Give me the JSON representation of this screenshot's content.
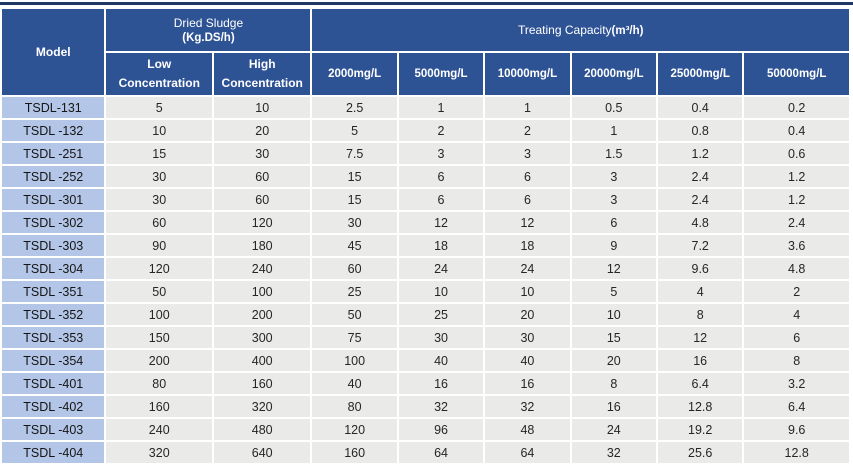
{
  "colors": {
    "top_border": "#1f3864",
    "header_bg": "#2e5395",
    "header_text": "#ffffff",
    "model_col_bg": "#b4c6e7",
    "data_cell_bg": "#eaeae8"
  },
  "table": {
    "header": {
      "model": "Model",
      "dried_sludge": {
        "title": "Dried Sludge",
        "unit": "(Kg.DS/h)"
      },
      "sub_columns": [
        {
          "line1": "Low",
          "line2": "Concentration"
        },
        {
          "line1": "High",
          "line2": "Concentration"
        }
      ],
      "treating_capacity": {
        "title": "Treating Capacity",
        "unit": "(m³/h)"
      },
      "concentration_columns": [
        "2000mg/L",
        "5000mg/L",
        "10000mg/L",
        "20000mg/L",
        "25000mg/L",
        "50000mg/L"
      ]
    },
    "rows": [
      {
        "model": "TSDL-131",
        "low": "5",
        "high": "10",
        "values": [
          "2.5",
          "1",
          "1",
          "0.5",
          "0.4",
          "0.2"
        ]
      },
      {
        "model": "TSDL -132",
        "low": "10",
        "high": "20",
        "values": [
          "5",
          "2",
          "2",
          "1",
          "0.8",
          "0.4"
        ]
      },
      {
        "model": "TSDL -251",
        "low": "15",
        "high": "30",
        "values": [
          "7.5",
          "3",
          "3",
          "1.5",
          "1.2",
          "0.6"
        ]
      },
      {
        "model": "TSDL -252",
        "low": "30",
        "high": "60",
        "values": [
          "15",
          "6",
          "6",
          "3",
          "2.4",
          "1.2"
        ]
      },
      {
        "model": "TSDL -301",
        "low": "30",
        "high": "60",
        "values": [
          "15",
          "6",
          "6",
          "3",
          "2.4",
          "1.2"
        ]
      },
      {
        "model": "TSDL -302",
        "low": "60",
        "high": "120",
        "values": [
          "30",
          "12",
          "12",
          "6",
          "4.8",
          "2.4"
        ]
      },
      {
        "model": "TSDL -303",
        "low": "90",
        "high": "180",
        "values": [
          "45",
          "18",
          "18",
          "9",
          "7.2",
          "3.6"
        ]
      },
      {
        "model": "TSDL -304",
        "low": "120",
        "high": "240",
        "values": [
          "60",
          "24",
          "24",
          "12",
          "9.6",
          "4.8"
        ]
      },
      {
        "model": "TSDL -351",
        "low": "50",
        "high": "100",
        "values": [
          "25",
          "10",
          "10",
          "5",
          "4",
          "2"
        ]
      },
      {
        "model": "TSDL -352",
        "low": "100",
        "high": "200",
        "values": [
          "50",
          "25",
          "20",
          "10",
          "8",
          "4"
        ]
      },
      {
        "model": "TSDL -353",
        "low": "150",
        "high": "300",
        "values": [
          "75",
          "30",
          "30",
          "15",
          "12",
          "6"
        ]
      },
      {
        "model": "TSDL -354",
        "low": "200",
        "high": "400",
        "values": [
          "100",
          "40",
          "40",
          "20",
          "16",
          "8"
        ]
      },
      {
        "model": "TSDL -401",
        "low": "80",
        "high": "160",
        "values": [
          "40",
          "16",
          "16",
          "8",
          "6.4",
          "3.2"
        ]
      },
      {
        "model": "TSDL -402",
        "low": "160",
        "high": "320",
        "values": [
          "80",
          "32",
          "32",
          "16",
          "12.8",
          "6.4"
        ]
      },
      {
        "model": "TSDL -403",
        "low": "240",
        "high": "480",
        "values": [
          "120",
          "96",
          "48",
          "24",
          "19.2",
          "9.6"
        ]
      },
      {
        "model": "TSDL -404",
        "low": "320",
        "high": "640",
        "values": [
          "160",
          "64",
          "64",
          "32",
          "25.6",
          "12.8"
        ]
      }
    ]
  }
}
